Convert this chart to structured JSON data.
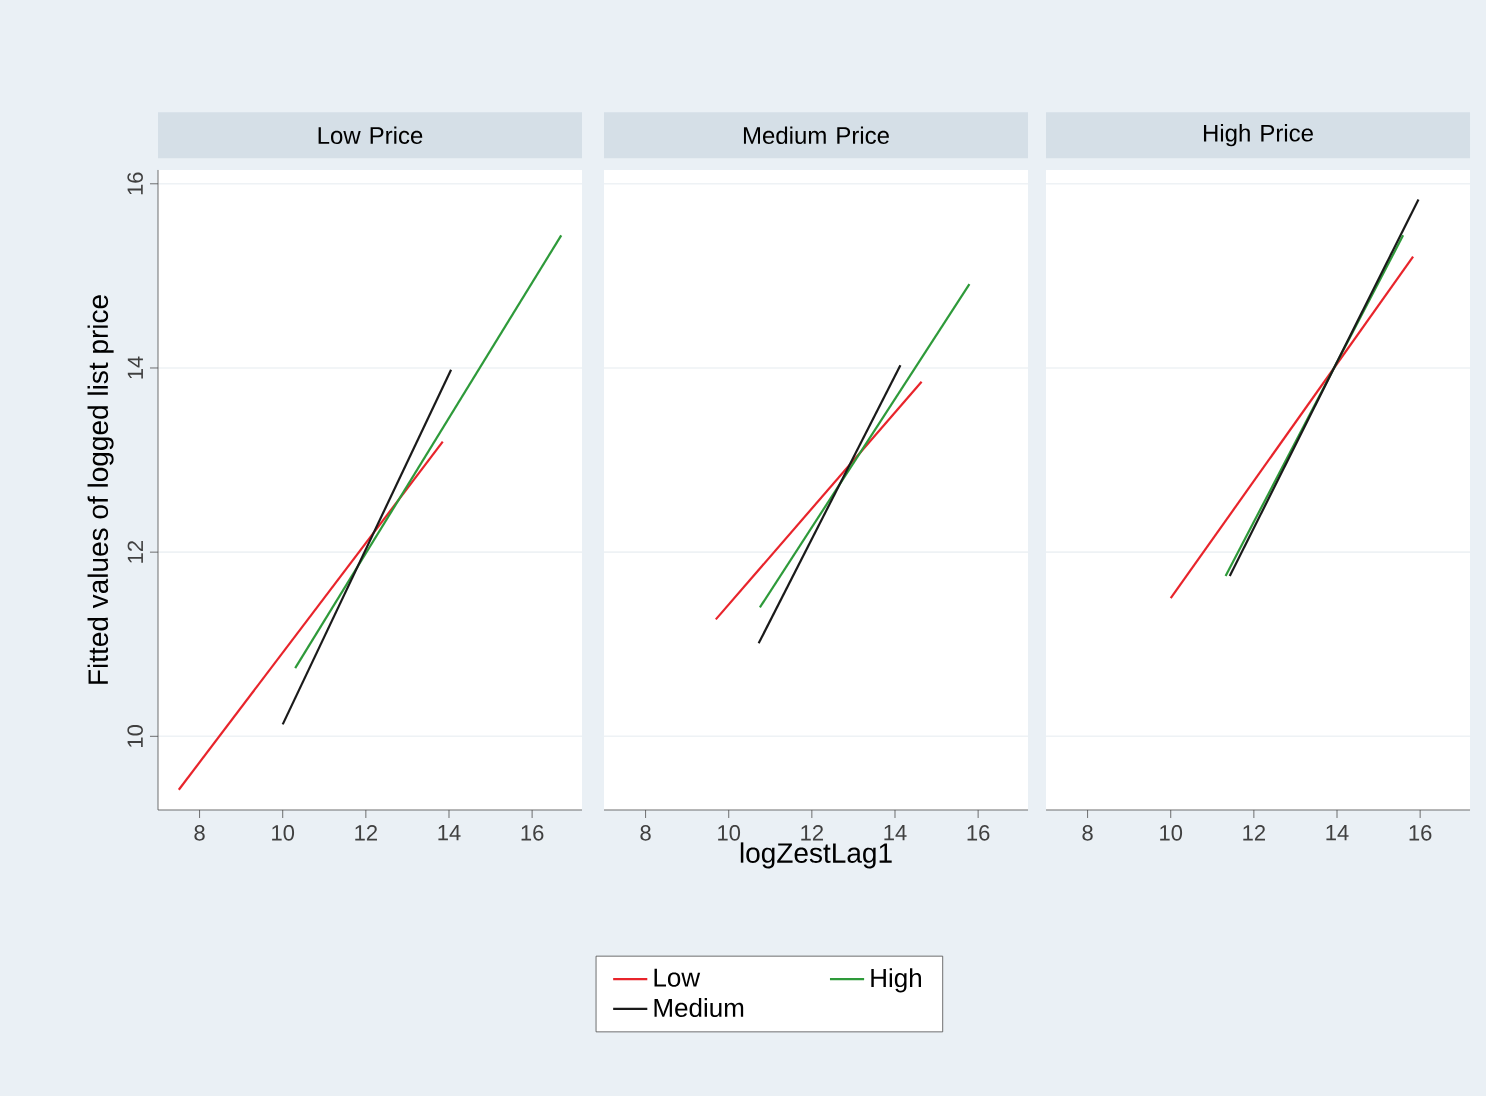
{
  "chart_data": [
    {
      "type": "line",
      "title": "Low Price",
      "ylabel": "Fitted values of logged list price",
      "xlim": [
        7,
        17.2
      ],
      "ylim": [
        9.2,
        16.15
      ],
      "xticks": [
        8,
        10,
        12,
        14,
        16
      ],
      "yticks": [
        10,
        12,
        14,
        16
      ],
      "grid": "y",
      "series": [
        {
          "color": "#e8242b",
          "x": [
            7.5,
            13.85
          ],
          "values": [
            9.42,
            13.2
          ]
        },
        {
          "color": "#2e9a3a",
          "x": [
            10.3,
            16.7
          ],
          "values": [
            10.74,
            15.44
          ]
        },
        {
          "color": "#1a1a1a",
          "x": [
            10.0,
            14.05
          ],
          "values": [
            10.13,
            13.98
          ]
        }
      ]
    },
    {
      "type": "line",
      "title": "Medium Price",
      "xlabel": "logZestLag1",
      "xlim": [
        7,
        17.2
      ],
      "ylim": [
        9.2,
        16.15
      ],
      "xticks": [
        8,
        10,
        12,
        14,
        16
      ],
      "yticks": [
        10,
        12,
        14,
        16
      ],
      "grid": "y",
      "tick_labels": "x",
      "legend": "bottom",
      "series": [
        {
          "name": "Low",
          "color": "#e8242b",
          "x": [
            9.69,
            14.64
          ],
          "values": [
            11.27,
            13.85
          ]
        },
        {
          "name": "High",
          "color": "#2e9a3a",
          "x": [
            10.75,
            15.79
          ],
          "values": [
            11.4,
            14.91
          ]
        },
        {
          "name": "Medium",
          "color": "#1a1a1a",
          "x": [
            10.72,
            14.13
          ],
          "values": [
            11.01,
            14.03
          ]
        }
      ]
    },
    {
      "type": "line",
      "title": "High Price",
      "xlim": [
        7,
        17.2
      ],
      "ylim": [
        9.2,
        16.15
      ],
      "xticks": [
        8,
        10,
        12,
        14,
        16
      ],
      "yticks": [
        10,
        12,
        14,
        16
      ],
      "grid": "y",
      "tick_labels": "x",
      "series": [
        {
          "color": "#e8242b",
          "x": [
            10.0,
            15.83
          ],
          "values": [
            11.5,
            15.21
          ]
        },
        {
          "color": "#2e9a3a",
          "x": [
            11.32,
            15.59
          ],
          "values": [
            11.74,
            15.44
          ]
        },
        {
          "color": "#1a1a1a",
          "x": [
            11.42,
            15.96
          ],
          "values": [
            11.74,
            15.83
          ]
        }
      ]
    }
  ]
}
